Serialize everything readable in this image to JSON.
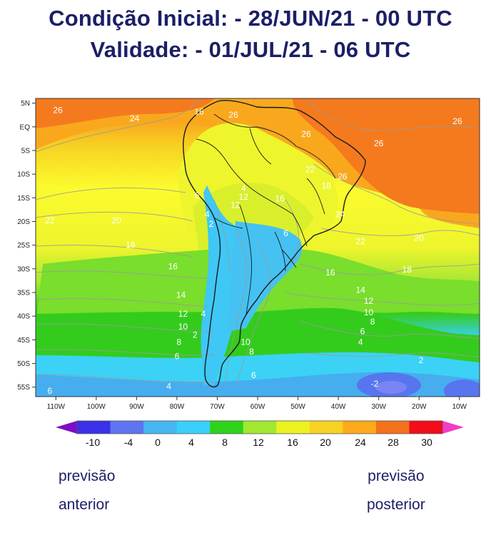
{
  "header": {
    "line1": "Condição Inicial: - 28/JUN/21 - 00 UTC",
    "line2": "Validade: - 01/JUL/21 - 06 UTC"
  },
  "map": {
    "lat_labels": [
      "5N",
      "EQ",
      "5S",
      "10S",
      "15S",
      "20S",
      "25S",
      "30S",
      "35S",
      "40S",
      "45S",
      "50S",
      "55S"
    ],
    "lon_labels": [
      "110W",
      "100W",
      "90W",
      "80W",
      "70W",
      "60W",
      "50W",
      "40W",
      "30W",
      "20W",
      "10W"
    ],
    "contour_labels": [
      {
        "text": "26",
        "lon": -109.5,
        "lat": 3.5
      },
      {
        "text": "24",
        "lon": -90.5,
        "lat": 1.8
      },
      {
        "text": "16",
        "lon": -74.5,
        "lat": 3.2
      },
      {
        "text": "26",
        "lon": -66,
        "lat": 2.5
      },
      {
        "text": "26",
        "lon": -48,
        "lat": -1.5
      },
      {
        "text": "26",
        "lon": -10.5,
        "lat": 1.2
      },
      {
        "text": "26",
        "lon": -30,
        "lat": -3.5
      },
      {
        "text": "22",
        "lon": -47,
        "lat": -9
      },
      {
        "text": "18",
        "lon": -43,
        "lat": -12.5
      },
      {
        "text": "26",
        "lon": -39,
        "lat": -10.5
      },
      {
        "text": "24",
        "lon": -39.5,
        "lat": -18.5
      },
      {
        "text": "4",
        "lon": -63.5,
        "lat": -13
      },
      {
        "text": "12",
        "lon": -63.5,
        "lat": -14.8
      },
      {
        "text": "16",
        "lon": -54.5,
        "lat": -15.2
      },
      {
        "text": "6",
        "lon": -75,
        "lat": -14.5
      },
      {
        "text": "12",
        "lon": -65.5,
        "lat": -16.5
      },
      {
        "text": "4",
        "lon": -72.5,
        "lat": -18.5
      },
      {
        "text": "2",
        "lon": -71.5,
        "lat": -20.5
      },
      {
        "text": "6",
        "lon": -53,
        "lat": -22.5
      },
      {
        "text": "22",
        "lon": -111.5,
        "lat": -19.8
      },
      {
        "text": "20",
        "lon": -95,
        "lat": -19.8
      },
      {
        "text": "18",
        "lon": -91.5,
        "lat": -25
      },
      {
        "text": "20",
        "lon": -20,
        "lat": -23.5
      },
      {
        "text": "22",
        "lon": -34.5,
        "lat": -24.2
      },
      {
        "text": "16",
        "lon": -81,
        "lat": -29.5
      },
      {
        "text": "16",
        "lon": -42,
        "lat": -30.8
      },
      {
        "text": "18",
        "lon": -23,
        "lat": -30.2
      },
      {
        "text": "14",
        "lon": -79,
        "lat": -35.5
      },
      {
        "text": "14",
        "lon": -34.5,
        "lat": -34.5
      },
      {
        "text": "12",
        "lon": -32.5,
        "lat": -36.8
      },
      {
        "text": "12",
        "lon": -78.5,
        "lat": -39.5
      },
      {
        "text": "4",
        "lon": -73.5,
        "lat": -39.5
      },
      {
        "text": "10",
        "lon": -32.5,
        "lat": -39.2
      },
      {
        "text": "8",
        "lon": -31.5,
        "lat": -41.2
      },
      {
        "text": "10",
        "lon": -78.5,
        "lat": -42.2
      },
      {
        "text": "6",
        "lon": -34,
        "lat": -43.2
      },
      {
        "text": "4",
        "lon": -34.5,
        "lat": -45.5
      },
      {
        "text": "2",
        "lon": -75.5,
        "lat": -44
      },
      {
        "text": "10",
        "lon": -63,
        "lat": -45.5
      },
      {
        "text": "8",
        "lon": -79.5,
        "lat": -45.5
      },
      {
        "text": "8",
        "lon": -61.5,
        "lat": -47.5
      },
      {
        "text": "6",
        "lon": -80,
        "lat": -48.5
      },
      {
        "text": "2",
        "lon": -19.5,
        "lat": -49.3
      },
      {
        "text": "6",
        "lon": -61,
        "lat": -52.5
      },
      {
        "text": "4",
        "lon": -82,
        "lat": -54.8
      },
      {
        "text": "-2",
        "lon": -31,
        "lat": -54.3
      },
      {
        "text": "6",
        "lon": -20.5,
        "lat": -57.5
      },
      {
        "text": "6",
        "lon": -111.5,
        "lat": -55.8
      }
    ]
  },
  "colorbar": {
    "labels": [
      "-10",
      "-4",
      "0",
      "4",
      "8",
      "12",
      "16",
      "20",
      "24",
      "28",
      "30"
    ],
    "colors": [
      "#7d0fc4",
      "#3a31e8",
      "#5e74f0",
      "#46b6f0",
      "#3ad0fb",
      "#2fd21a",
      "#a2e831",
      "#ecf21f",
      "#f7d123",
      "#ffaa1c",
      "#f3721b",
      "#f20d1a",
      "#f23cc6"
    ]
  },
  "nav": {
    "prev": [
      "previsão",
      "anterior"
    ],
    "next": [
      "previsão",
      "posterior"
    ]
  }
}
